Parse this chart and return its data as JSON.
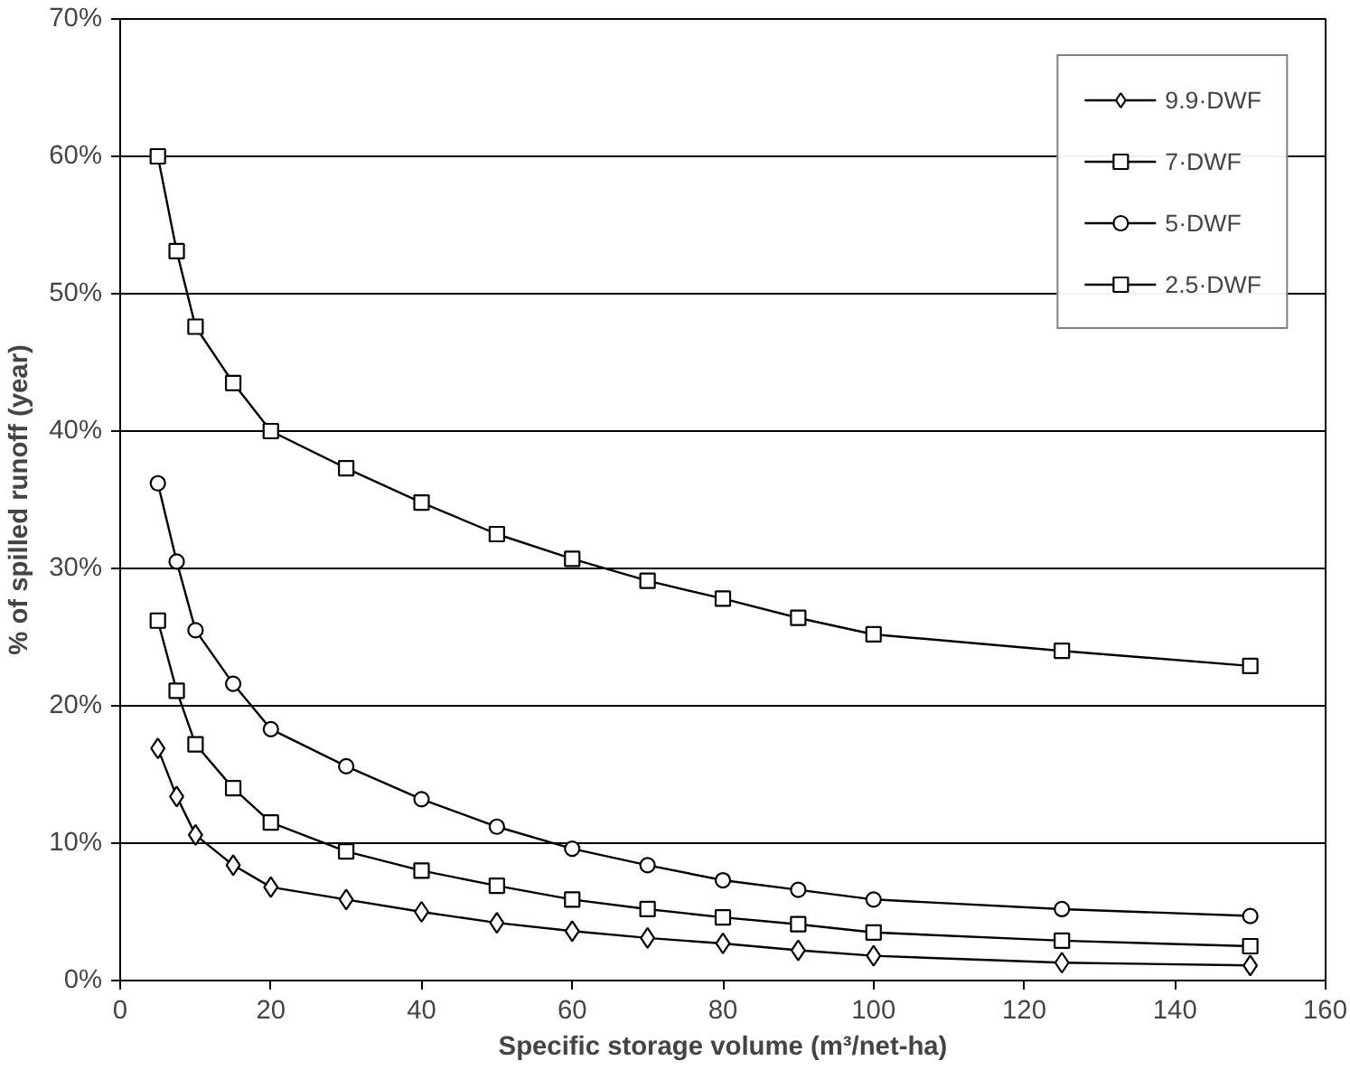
{
  "chart_data": {
    "type": "line",
    "xlabel": "Specific storage volume (m³/net-ha)",
    "ylabel": "% of spilled runoff (year)",
    "x": [
      5,
      7.5,
      10,
      15,
      20,
      30,
      40,
      50,
      60,
      70,
      80,
      90,
      100,
      125,
      150
    ],
    "series": [
      {
        "name": "9.9·DWF",
        "color": "#000000",
        "marker": "diamond",
        "values": [
          16.9,
          13.4,
          10.6,
          8.4,
          6.8,
          5.9,
          5.0,
          4.2,
          3.6,
          3.1,
          2.7,
          2.2,
          1.8,
          1.3,
          1.1
        ]
      },
      {
        "name": "7·DWF",
        "color": "#000000",
        "marker": "square",
        "values": [
          26.2,
          21.1,
          17.2,
          14.0,
          11.5,
          9.4,
          8.0,
          6.9,
          5.9,
          5.2,
          4.6,
          4.1,
          3.5,
          2.9,
          2.5
        ]
      },
      {
        "name": "5·DWF",
        "color": "#000000",
        "marker": "circle",
        "values": [
          36.2,
          30.5,
          25.5,
          21.6,
          18.3,
          15.6,
          13.2,
          11.2,
          9.6,
          8.4,
          7.3,
          6.6,
          5.9,
          5.2,
          4.7
        ]
      },
      {
        "name": "2.5·DWF",
        "color": "#000000",
        "marker": "square",
        "values": [
          60.0,
          53.1,
          47.6,
          43.5,
          40.0,
          37.3,
          34.8,
          32.5,
          30.7,
          29.1,
          27.8,
          26.4,
          25.2,
          24.0,
          22.9
        ]
      }
    ],
    "xlim": [
      0,
      160
    ],
    "xticks": [
      0,
      20,
      40,
      60,
      80,
      100,
      120,
      140,
      160
    ],
    "ylim": [
      0,
      70
    ],
    "yticks": [
      {
        "value": 0,
        "label": "0%"
      },
      {
        "value": 10,
        "label": "10%"
      },
      {
        "value": 20,
        "label": "20%"
      },
      {
        "value": 30,
        "label": "30%"
      },
      {
        "value": 40,
        "label": "40%"
      },
      {
        "value": 50,
        "label": "50%"
      },
      {
        "value": 60,
        "label": "60%"
      },
      {
        "value": 70,
        "label": "70%"
      }
    ],
    "grid": "y",
    "legend": "top right",
    "line_style": "solid"
  }
}
